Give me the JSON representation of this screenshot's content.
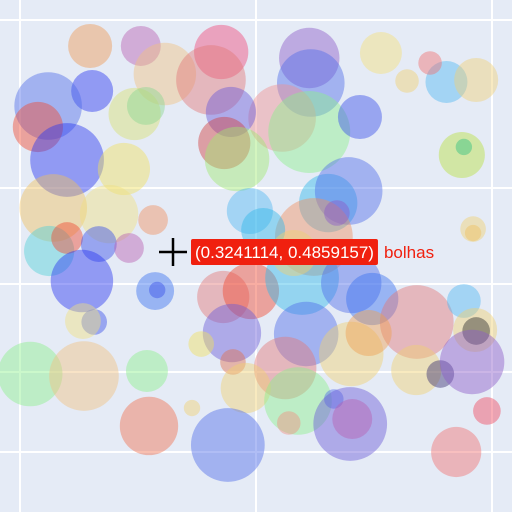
{
  "chart_data": {
    "type": "scatter",
    "variant": "bubble",
    "xlim": [
      0,
      1
    ],
    "ylim": [
      0,
      1
    ],
    "grid": true,
    "background_color": "#e5ebf6",
    "grid_color": "#ffffff",
    "x_gridlines": [
      0.0390625,
      0.5,
      0.9609375
    ],
    "y_gridlines": [
      0.9609375,
      0.6328125,
      0.4453125,
      0.2734375,
      0.1171875
    ],
    "marker_opacity": 0.45,
    "series": [
      {
        "points": [
          {
            "x": 0.176,
            "y": 0.9102,
            "r": 0.043,
            "color": "#ee9a55"
          },
          {
            "x": 0.275,
            "y": 0.9102,
            "r": 0.039,
            "color": "#b85fb2"
          },
          {
            "x": 0.432,
            "y": 0.8984,
            "r": 0.053,
            "color": "#f04a7a"
          },
          {
            "x": 0.604,
            "y": 0.8867,
            "r": 0.059,
            "color": "#8c5cc8"
          },
          {
            "x": 0.744,
            "y": 0.8965,
            "r": 0.041,
            "color": "#f5e07a"
          },
          {
            "x": 0.322,
            "y": 0.8555,
            "r": 0.061,
            "color": "#f0c080"
          },
          {
            "x": 0.412,
            "y": 0.8438,
            "r": 0.068,
            "color": "#e27777"
          },
          {
            "x": 0.607,
            "y": 0.8379,
            "r": 0.066,
            "color": "#4f6ce8"
          },
          {
            "x": 0.872,
            "y": 0.8398,
            "r": 0.041,
            "color": "#52b8f2"
          },
          {
            "x": 0.93,
            "y": 0.8438,
            "r": 0.043,
            "color": "#f0d078"
          },
          {
            "x": 0.84,
            "y": 0.877,
            "r": 0.023,
            "color": "#f07070"
          },
          {
            "x": 0.795,
            "y": 0.8418,
            "r": 0.023,
            "color": "#f0d070"
          },
          {
            "x": 0.18,
            "y": 0.8223,
            "r": 0.041,
            "color": "#2b37f0"
          },
          {
            "x": 0.094,
            "y": 0.793,
            "r": 0.066,
            "color": "#4f6ce8"
          },
          {
            "x": 0.263,
            "y": 0.7773,
            "r": 0.051,
            "color": "#d6e070"
          },
          {
            "x": 0.551,
            "y": 0.7695,
            "r": 0.066,
            "color": "#f09090"
          },
          {
            "x": 0.451,
            "y": 0.7813,
            "r": 0.049,
            "color": "#6b5cd8"
          },
          {
            "x": 0.604,
            "y": 0.7422,
            "r": 0.08,
            "color": "#8cf08c"
          },
          {
            "x": 0.703,
            "y": 0.7715,
            "r": 0.043,
            "color": "#3a50e8"
          },
          {
            "x": 0.074,
            "y": 0.752,
            "r": 0.049,
            "color": "#f04a30"
          },
          {
            "x": 0.285,
            "y": 0.793,
            "r": 0.037,
            "color": "#8cd890"
          },
          {
            "x": 0.131,
            "y": 0.6875,
            "r": 0.072,
            "color": "#2b37f0"
          },
          {
            "x": 0.242,
            "y": 0.6699,
            "r": 0.051,
            "color": "#f0e060"
          },
          {
            "x": 0.438,
            "y": 0.7207,
            "r": 0.051,
            "color": "#d04040"
          },
          {
            "x": 0.463,
            "y": 0.6895,
            "r": 0.063,
            "color": "#a0e870"
          },
          {
            "x": 0.902,
            "y": 0.6973,
            "r": 0.045,
            "color": "#b8e040"
          },
          {
            "x": 0.906,
            "y": 0.7129,
            "r": 0.016,
            "color": "#30c080"
          },
          {
            "x": 0.104,
            "y": 0.5938,
            "r": 0.066,
            "color": "#f0c060"
          },
          {
            "x": 0.213,
            "y": 0.582,
            "r": 0.057,
            "color": "#f0e080"
          },
          {
            "x": 0.299,
            "y": 0.5703,
            "r": 0.029,
            "color": "#f09060"
          },
          {
            "x": 0.488,
            "y": 0.5879,
            "r": 0.045,
            "color": "#52b8f2"
          },
          {
            "x": 0.641,
            "y": 0.6035,
            "r": 0.057,
            "color": "#30b8e8"
          },
          {
            "x": 0.681,
            "y": 0.627,
            "r": 0.066,
            "color": "#4f6ce8"
          },
          {
            "x": 0.613,
            "y": 0.5371,
            "r": 0.076,
            "color": "#f09060"
          },
          {
            "x": 0.658,
            "y": 0.584,
            "r": 0.025,
            "color": "#8c5cc8"
          },
          {
            "x": 0.924,
            "y": 0.5527,
            "r": 0.025,
            "color": "#f0d070"
          },
          {
            "x": 0.096,
            "y": 0.5098,
            "r": 0.049,
            "color": "#52d0d8"
          },
          {
            "x": 0.131,
            "y": 0.5352,
            "r": 0.031,
            "color": "#f04a30"
          },
          {
            "x": 0.193,
            "y": 0.5234,
            "r": 0.035,
            "color": "#3a50e8"
          },
          {
            "x": 0.252,
            "y": 0.5156,
            "r": 0.029,
            "color": "#b85fb2"
          },
          {
            "x": 0.16,
            "y": 0.4512,
            "r": 0.061,
            "color": "#2b37f0"
          },
          {
            "x": 0.303,
            "y": 0.4316,
            "r": 0.037,
            "color": "#3a70f0"
          },
          {
            "x": 0.436,
            "y": 0.4199,
            "r": 0.051,
            "color": "#e27777"
          },
          {
            "x": 0.49,
            "y": 0.4316,
            "r": 0.055,
            "color": "#f04a30"
          },
          {
            "x": 0.59,
            "y": 0.457,
            "r": 0.072,
            "color": "#30b8e8"
          },
          {
            "x": 0.686,
            "y": 0.4473,
            "r": 0.059,
            "color": "#4f6ce8"
          },
          {
            "x": 0.727,
            "y": 0.416,
            "r": 0.051,
            "color": "#3a70f0"
          },
          {
            "x": 0.514,
            "y": 0.5508,
            "r": 0.043,
            "color": "#30b8e8"
          },
          {
            "x": 0.574,
            "y": 0.5059,
            "r": 0.045,
            "color": "#f0d070"
          },
          {
            "x": 0.453,
            "y": 0.3496,
            "r": 0.057,
            "color": "#6b5cd8"
          },
          {
            "x": 0.598,
            "y": 0.3477,
            "r": 0.063,
            "color": "#4f6ce8"
          },
          {
            "x": 0.814,
            "y": 0.3711,
            "r": 0.072,
            "color": "#e27777"
          },
          {
            "x": 0.906,
            "y": 0.4121,
            "r": 0.033,
            "color": "#52b8f2"
          },
          {
            "x": 0.928,
            "y": 0.3555,
            "r": 0.043,
            "color": "#f0d070"
          },
          {
            "x": 0.93,
            "y": 0.3535,
            "r": 0.027,
            "color": "#303030"
          },
          {
            "x": 0.307,
            "y": 0.4336,
            "r": 0.016,
            "color": "#3a50e8"
          },
          {
            "x": 0.686,
            "y": 0.3086,
            "r": 0.063,
            "color": "#f0d070"
          },
          {
            "x": 0.72,
            "y": 0.3496,
            "r": 0.045,
            "color": "#f0a050"
          },
          {
            "x": 0.184,
            "y": 0.3711,
            "r": 0.025,
            "color": "#3a50e8"
          },
          {
            "x": 0.162,
            "y": 0.373,
            "r": 0.035,
            "color": "#f0e080"
          },
          {
            "x": 0.393,
            "y": 0.3281,
            "r": 0.025,
            "color": "#f0e060"
          },
          {
            "x": 0.455,
            "y": 0.293,
            "r": 0.025,
            "color": "#e07050"
          },
          {
            "x": 0.557,
            "y": 0.2813,
            "r": 0.061,
            "color": "#e27777"
          },
          {
            "x": 0.813,
            "y": 0.2773,
            "r": 0.049,
            "color": "#f0d070"
          },
          {
            "x": 0.86,
            "y": 0.2695,
            "r": 0.027,
            "color": "#3a3070"
          },
          {
            "x": 0.922,
            "y": 0.293,
            "r": 0.063,
            "color": "#8c5cc8"
          },
          {
            "x": 0.059,
            "y": 0.2695,
            "r": 0.063,
            "color": "#8cf08c"
          },
          {
            "x": 0.164,
            "y": 0.2656,
            "r": 0.068,
            "color": "#f0c080"
          },
          {
            "x": 0.287,
            "y": 0.2754,
            "r": 0.041,
            "color": "#8cf08c"
          },
          {
            "x": 0.48,
            "y": 0.2422,
            "r": 0.049,
            "color": "#f0d070"
          },
          {
            "x": 0.582,
            "y": 0.2168,
            "r": 0.066,
            "color": "#8cf08c"
          },
          {
            "x": 0.375,
            "y": 0.2031,
            "r": 0.016,
            "color": "#f0d070"
          },
          {
            "x": 0.652,
            "y": 0.2207,
            "r": 0.019,
            "color": "#4f6ce8"
          },
          {
            "x": 0.684,
            "y": 0.1719,
            "r": 0.072,
            "color": "#6b5cd8"
          },
          {
            "x": 0.688,
            "y": 0.1816,
            "r": 0.039,
            "color": "#b85fb2"
          },
          {
            "x": 0.291,
            "y": 0.168,
            "r": 0.057,
            "color": "#f07050"
          },
          {
            "x": 0.445,
            "y": 0.1309,
            "r": 0.072,
            "color": "#4f6ce8"
          },
          {
            "x": 0.564,
            "y": 0.1738,
            "r": 0.023,
            "color": "#f09080"
          },
          {
            "x": 0.891,
            "y": 0.1172,
            "r": 0.049,
            "color": "#f07070"
          },
          {
            "x": 0.951,
            "y": 0.1973,
            "r": 0.027,
            "color": "#f04a60"
          },
          {
            "x": 0.924,
            "y": 0.5449,
            "r": 0.016,
            "color": "#f0c060"
          }
        ]
      }
    ],
    "annotations": [
      {
        "type": "crosshair",
        "x": 0.3379,
        "y": 0.5078,
        "label": "(0.3241114, 0.4859157)",
        "trailing_text": "bolhas",
        "label_bg": "#f0200f",
        "label_color": "#ffffff",
        "trailing_color": "#f0200f"
      }
    ]
  }
}
